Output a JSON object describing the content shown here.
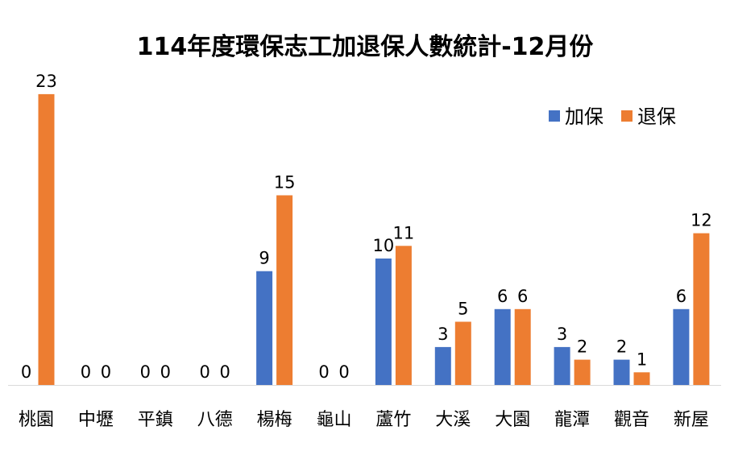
{
  "chart_data": {
    "type": "bar",
    "title": "114年度環保志工加退保人數統計-12月份",
    "categories": [
      "桃園",
      "中壢",
      "平鎮",
      "八德",
      "楊梅",
      "龜山",
      "蘆竹",
      "大溪",
      "大園",
      "龍潭",
      "觀音",
      "新屋"
    ],
    "series": [
      {
        "name": "加保",
        "color": "#4472C4",
        "values": [
          0,
          0,
          0,
          0,
          9,
          0,
          10,
          3,
          6,
          3,
          2,
          6
        ]
      },
      {
        "name": "退保",
        "color": "#ED7D31",
        "values": [
          23,
          0,
          0,
          0,
          15,
          0,
          11,
          5,
          6,
          2,
          1,
          12
        ]
      }
    ],
    "ylim": [
      0,
      25
    ],
    "grid": false,
    "legend": "top-right",
    "data_labels": true
  }
}
